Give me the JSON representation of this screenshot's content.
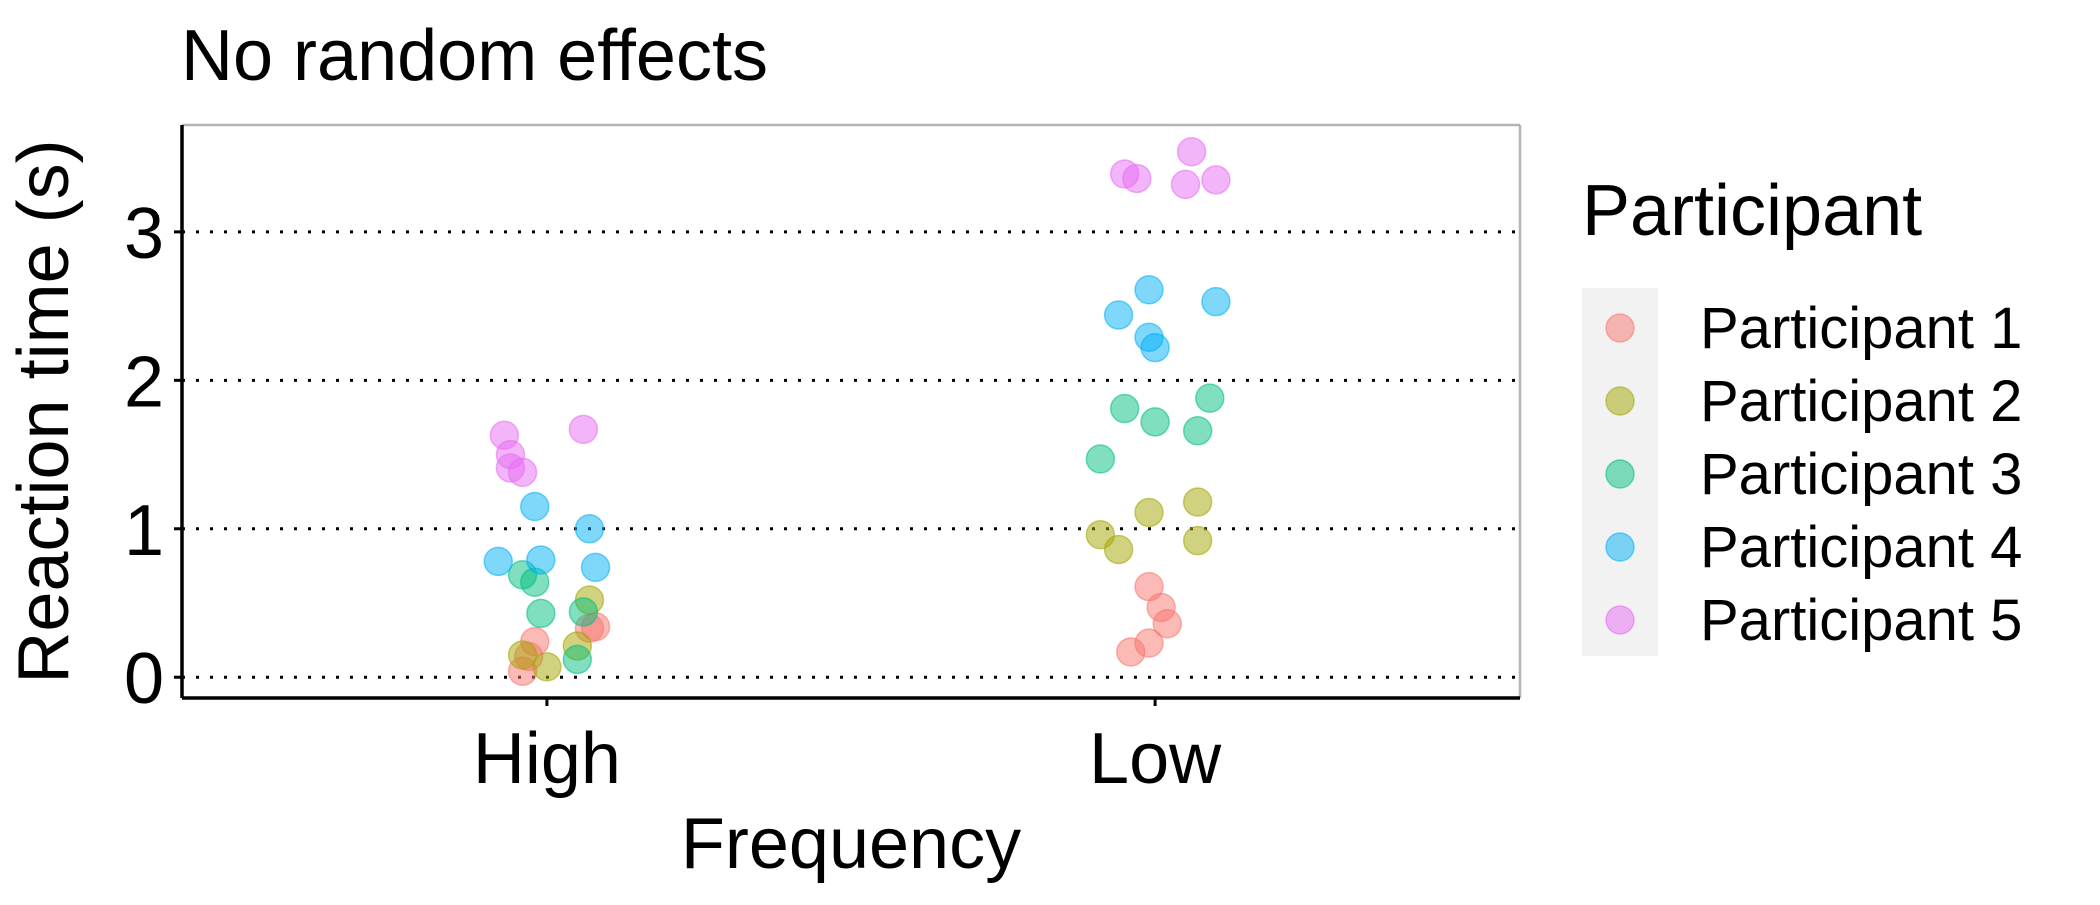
{
  "chart_data": {
    "type": "scatter",
    "title": "No random effects",
    "xlabel": "Frequency",
    "ylabel": "Reaction time (s)",
    "categories": [
      "High",
      "Low"
    ],
    "ylim": [
      -0.14,
      3.72
    ],
    "yticks": [
      0,
      1,
      2,
      3
    ],
    "grid": "horizontal dotted major lines",
    "legend": {
      "title": "Participant",
      "placement": "right"
    },
    "series": [
      {
        "name": "Participant 1",
        "color": "#F8766D",
        "points": [
          {
            "x": "High",
            "jitter": -0.04,
            "y": 0.04
          },
          {
            "x": "High",
            "jitter": -0.03,
            "y": 0.14
          },
          {
            "x": "High",
            "jitter": -0.02,
            "y": 0.24
          },
          {
            "x": "High",
            "jitter": 0.07,
            "y": 0.33
          },
          {
            "x": "High",
            "jitter": 0.08,
            "y": 0.34
          },
          {
            "x": "Low",
            "jitter": -0.04,
            "y": 0.17
          },
          {
            "x": "Low",
            "jitter": -0.01,
            "y": 0.23
          },
          {
            "x": "Low",
            "jitter": 0.02,
            "y": 0.36
          },
          {
            "x": "Low",
            "jitter": 0.01,
            "y": 0.47
          },
          {
            "x": "Low",
            "jitter": -0.01,
            "y": 0.61
          }
        ]
      },
      {
        "name": "Participant 2",
        "color": "#A3A500",
        "points": [
          {
            "x": "High",
            "jitter": -0.04,
            "y": 0.15
          },
          {
            "x": "High",
            "jitter": 0.0,
            "y": 0.07
          },
          {
            "x": "High",
            "jitter": 0.05,
            "y": 0.21
          },
          {
            "x": "High",
            "jitter": 0.07,
            "y": 0.52
          },
          {
            "x": "Low",
            "jitter": -0.09,
            "y": 0.96
          },
          {
            "x": "Low",
            "jitter": -0.06,
            "y": 0.86
          },
          {
            "x": "Low",
            "jitter": -0.01,
            "y": 1.11
          },
          {
            "x": "Low",
            "jitter": 0.07,
            "y": 1.18
          },
          {
            "x": "Low",
            "jitter": 0.07,
            "y": 0.92
          }
        ]
      },
      {
        "name": "Participant 3",
        "color": "#00BF7D",
        "points": [
          {
            "x": "High",
            "jitter": -0.04,
            "y": 0.69
          },
          {
            "x": "High",
            "jitter": -0.02,
            "y": 0.64
          },
          {
            "x": "High",
            "jitter": -0.01,
            "y": 0.43
          },
          {
            "x": "High",
            "jitter": 0.05,
            "y": 0.12
          },
          {
            "x": "High",
            "jitter": 0.06,
            "y": 0.44
          },
          {
            "x": "Low",
            "jitter": -0.09,
            "y": 1.47
          },
          {
            "x": "Low",
            "jitter": -0.05,
            "y": 1.81
          },
          {
            "x": "Low",
            "jitter": 0.0,
            "y": 1.72
          },
          {
            "x": "Low",
            "jitter": 0.07,
            "y": 1.66
          },
          {
            "x": "Low",
            "jitter": 0.09,
            "y": 1.88
          }
        ]
      },
      {
        "name": "Participant 4",
        "color": "#00B0F6",
        "points": [
          {
            "x": "High",
            "jitter": -0.08,
            "y": 0.78
          },
          {
            "x": "High",
            "jitter": -0.02,
            "y": 1.15
          },
          {
            "x": "High",
            "jitter": -0.01,
            "y": 0.79
          },
          {
            "x": "High",
            "jitter": 0.07,
            "y": 1.0
          },
          {
            "x": "High",
            "jitter": 0.08,
            "y": 0.74
          },
          {
            "x": "Low",
            "jitter": -0.06,
            "y": 2.44
          },
          {
            "x": "Low",
            "jitter": -0.01,
            "y": 2.29
          },
          {
            "x": "Low",
            "jitter": -0.01,
            "y": 2.61
          },
          {
            "x": "Low",
            "jitter": 0.0,
            "y": 2.22
          },
          {
            "x": "Low",
            "jitter": 0.1,
            "y": 2.53
          }
        ]
      },
      {
        "name": "Participant 5",
        "color": "#E76BF3",
        "points": [
          {
            "x": "High",
            "jitter": -0.07,
            "y": 1.63
          },
          {
            "x": "High",
            "jitter": -0.06,
            "y": 1.5
          },
          {
            "x": "High",
            "jitter": -0.06,
            "y": 1.41
          },
          {
            "x": "High",
            "jitter": -0.04,
            "y": 1.38
          },
          {
            "x": "High",
            "jitter": 0.06,
            "y": 1.67
          },
          {
            "x": "Low",
            "jitter": -0.05,
            "y": 3.39
          },
          {
            "x": "Low",
            "jitter": -0.03,
            "y": 3.36
          },
          {
            "x": "Low",
            "jitter": 0.05,
            "y": 3.32
          },
          {
            "x": "Low",
            "jitter": 0.06,
            "y": 3.54
          },
          {
            "x": "Low",
            "jitter": 0.1,
            "y": 3.35
          }
        ]
      }
    ]
  }
}
